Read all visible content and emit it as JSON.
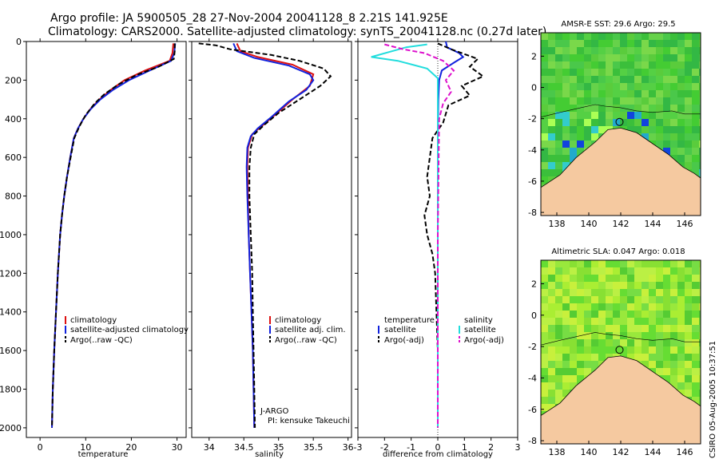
{
  "header": {
    "line1": "Argo profile: JA 5900505_28 27-Nov-2004 20041128_8 2.21S 141.925E",
    "line2": "Climatology: CARS2000. Satellite-adjusted climatology: synTS_20041128.nc (0.27d later)"
  },
  "side_note": "CSIRO 05-Aug-2005 10:37:51",
  "colors": {
    "climatology": "#dd1111",
    "satellite": "#1122dd",
    "argo": "#000000",
    "satellite_sal": "#22dddd",
    "argo_adj_sal": "#dd11cc",
    "land": "#f5c9a0",
    "ocean": "#44cc44"
  },
  "chart_data": [
    {
      "type": "line",
      "xlabel": "temperature",
      "xlim": [
        -3,
        32
      ],
      "ylim": [
        0,
        2050
      ],
      "y_inverted": true,
      "xticks": [
        0,
        10,
        20,
        30
      ],
      "yticks": [
        0,
        200,
        400,
        600,
        800,
        1000,
        1200,
        1400,
        1600,
        1800,
        2000
      ],
      "legend": [
        "climatology",
        "satellite-adjusted climatology",
        "Argo(..raw -QC)"
      ],
      "series": [
        {
          "name": "climatology",
          "color": "#dd1111",
          "dash": "",
          "points": [
            [
              29.2,
              10
            ],
            [
              29.0,
              60
            ],
            [
              28.4,
              100
            ],
            [
              23,
              150
            ],
            [
              18.5,
              200
            ],
            [
              15.5,
              250
            ],
            [
              13,
              300
            ],
            [
              11,
              350
            ],
            [
              9.5,
              400
            ],
            [
              8.3,
              450
            ],
            [
              7.4,
              500
            ],
            [
              6.6,
              600
            ],
            [
              5.9,
              700
            ],
            [
              5.3,
              800
            ],
            [
              4.8,
              900
            ],
            [
              4.4,
              1000
            ],
            [
              3.9,
              1200
            ],
            [
              3.5,
              1400
            ],
            [
              3.1,
              1600
            ],
            [
              2.8,
              1800
            ],
            [
              2.6,
              2000
            ]
          ]
        },
        {
          "name": "satellite-adjusted climatology",
          "color": "#1122dd",
          "dash": "",
          "points": [
            [
              29.6,
              10
            ],
            [
              29.4,
              60
            ],
            [
              28.7,
              100
            ],
            [
              24,
              150
            ],
            [
              19.5,
              200
            ],
            [
              16,
              250
            ],
            [
              13.2,
              300
            ],
            [
              11.1,
              350
            ],
            [
              9.5,
              400
            ],
            [
              8.3,
              450
            ],
            [
              7.4,
              500
            ],
            [
              6.6,
              600
            ],
            [
              5.9,
              700
            ],
            [
              5.3,
              800
            ],
            [
              4.8,
              900
            ],
            [
              4.4,
              1000
            ],
            [
              3.9,
              1200
            ],
            [
              3.5,
              1400
            ],
            [
              3.1,
              1600
            ],
            [
              2.8,
              1800
            ],
            [
              2.6,
              2000
            ]
          ]
        },
        {
          "name": "Argo(..raw -QC)",
          "color": "#000000",
          "dash": "6,3",
          "points": [
            [
              29.5,
              10
            ],
            [
              29.5,
              50
            ],
            [
              29.3,
              90
            ],
            [
              26,
              130
            ],
            [
              21,
              175
            ],
            [
              17,
              225
            ],
            [
              14,
              275
            ],
            [
              12,
              320
            ],
            [
              10,
              380
            ],
            [
              8.6,
              440
            ],
            [
              7.5,
              500
            ],
            [
              6.7,
              600
            ],
            [
              5.9,
              700
            ],
            [
              5.3,
              800
            ],
            [
              4.8,
              900
            ],
            [
              4.4,
              1000
            ],
            [
              3.9,
              1200
            ],
            [
              3.5,
              1400
            ],
            [
              3.1,
              1600
            ],
            [
              2.8,
              1800
            ],
            [
              2.6,
              2000
            ]
          ]
        }
      ]
    },
    {
      "type": "line",
      "xlabel": "salinity",
      "xlim": [
        33.75,
        36.05
      ],
      "ylim": [
        0,
        2050
      ],
      "y_inverted": true,
      "xticks": [
        34,
        34.5,
        35,
        35.5,
        36
      ],
      "legend": [
        "climatology",
        "satellite adj. clim.",
        "Argo(..raw -QC)"
      ],
      "annotation": [
        "J-ARGO",
        "PI: kensuke Takeuchi"
      ],
      "series": [
        {
          "name": "climatology",
          "color": "#dd1111",
          "dash": "",
          "points": [
            [
              34.4,
              10
            ],
            [
              34.45,
              50
            ],
            [
              34.7,
              80
            ],
            [
              35.2,
              120
            ],
            [
              35.5,
              170
            ],
            [
              35.45,
              230
            ],
            [
              35.2,
              300
            ],
            [
              34.95,
              380
            ],
            [
              34.75,
              440
            ],
            [
              34.62,
              480
            ],
            [
              34.56,
              550
            ],
            [
              34.55,
              650
            ],
            [
              34.56,
              800
            ],
            [
              34.57,
              1000
            ],
            [
              34.59,
              1200
            ],
            [
              34.61,
              1400
            ],
            [
              34.63,
              1600
            ],
            [
              34.64,
              1800
            ],
            [
              34.65,
              2000
            ]
          ]
        },
        {
          "name": "satellite adj. clim.",
          "color": "#1122dd",
          "dash": "",
          "points": [
            [
              34.35,
              10
            ],
            [
              34.4,
              50
            ],
            [
              34.65,
              85
            ],
            [
              35.15,
              125
            ],
            [
              35.45,
              170
            ],
            [
              35.5,
              200
            ],
            [
              35.4,
              250
            ],
            [
              35.15,
              310
            ],
            [
              34.9,
              390
            ],
            [
              34.7,
              450
            ],
            [
              34.6,
              490
            ],
            [
              34.55,
              550
            ],
            [
              34.54,
              650
            ],
            [
              34.55,
              800
            ],
            [
              34.57,
              1000
            ],
            [
              34.59,
              1200
            ],
            [
              34.61,
              1400
            ],
            [
              34.63,
              1600
            ],
            [
              34.64,
              1800
            ],
            [
              34.65,
              2000
            ]
          ]
        },
        {
          "name": "Argo(..raw -QC)",
          "color": "#000000",
          "dash": "6,3",
          "points": [
            [
              33.85,
              10
            ],
            [
              34.1,
              20
            ],
            [
              34.3,
              40
            ],
            [
              34.9,
              70
            ],
            [
              35.3,
              100
            ],
            [
              35.65,
              140
            ],
            [
              35.75,
              180
            ],
            [
              35.6,
              230
            ],
            [
              35.3,
              300
            ],
            [
              35.0,
              370
            ],
            [
              34.8,
              430
            ],
            [
              34.65,
              480
            ],
            [
              34.6,
              550
            ],
            [
              34.58,
              650
            ],
            [
              34.58,
              800
            ],
            [
              34.6,
              1000
            ],
            [
              34.62,
              1200
            ],
            [
              34.63,
              1400
            ],
            [
              34.64,
              1600
            ],
            [
              34.65,
              1800
            ],
            [
              34.66,
              2000
            ]
          ]
        }
      ]
    },
    {
      "type": "line",
      "xlabel": "difference from climatology",
      "xlim": [
        -3,
        3
      ],
      "ylim": [
        0,
        2050
      ],
      "y_inverted": true,
      "xticks": [
        -3,
        -2,
        -1,
        0,
        1,
        2,
        3
      ],
      "legend_left_title": "temperature",
      "legend_right_title": "salinity",
      "legend_left": [
        "satellite",
        "Argo(-adj)"
      ],
      "legend_right": [
        "satellite",
        "Argo(-adj)"
      ],
      "series": [
        {
          "name": "temperature satellite",
          "color": "#1122dd",
          "dash": "",
          "points": [
            [
              0.3,
              0
            ],
            [
              0.35,
              30
            ],
            [
              0.8,
              60
            ],
            [
              0.95,
              80
            ],
            [
              0.6,
              110
            ],
            [
              0.15,
              150
            ],
            [
              0.05,
              200
            ],
            [
              0.02,
              300
            ],
            [
              0,
              500
            ],
            [
              0,
              1000
            ],
            [
              0,
              2000
            ]
          ]
        },
        {
          "name": "temperature Argo(-adj)",
          "color": "#000000",
          "dash": "6,3",
          "points": [
            [
              0,
              10
            ],
            [
              0.5,
              40
            ],
            [
              1.5,
              90
            ],
            [
              1.2,
              130
            ],
            [
              1.7,
              180
            ],
            [
              0.9,
              230
            ],
            [
              1.2,
              280
            ],
            [
              0.4,
              330
            ],
            [
              0.2,
              420
            ],
            [
              -0.2,
              500
            ],
            [
              -0.3,
              600
            ],
            [
              -0.4,
              700
            ],
            [
              -0.3,
              800
            ],
            [
              -0.5,
              900
            ],
            [
              -0.4,
              1000
            ],
            [
              -0.2,
              1100
            ],
            [
              -0.1,
              1200
            ],
            [
              -0.05,
              1400
            ],
            [
              0,
              1600
            ],
            [
              0,
              2000
            ]
          ]
        },
        {
          "name": "salinity satellite",
          "color": "#22dddd",
          "dash": "",
          "points": [
            [
              -0.4,
              15
            ],
            [
              -1.2,
              30
            ],
            [
              -2.5,
              80
            ],
            [
              -1.5,
              100
            ],
            [
              -0.4,
              140
            ],
            [
              0,
              190
            ],
            [
              0,
              300
            ],
            [
              0,
              2000
            ]
          ]
        },
        {
          "name": "salinity Argo(-adj)",
          "color": "#dd11cc",
          "dash": "6,3",
          "points": [
            [
              -2.0,
              15
            ],
            [
              -1.3,
              40
            ],
            [
              -0.5,
              60
            ],
            [
              0.2,
              100
            ],
            [
              0.6,
              150
            ],
            [
              0.3,
              200
            ],
            [
              0.5,
              260
            ],
            [
              0.2,
              320
            ],
            [
              0.05,
              400
            ],
            [
              0,
              1000
            ],
            [
              0,
              2000
            ]
          ]
        }
      ]
    },
    {
      "type": "heatmap",
      "title": "AMSR-E SST: 29.6 Argo: 29.5",
      "xticks": [
        138,
        140,
        142,
        144,
        146
      ],
      "yticks": [
        2,
        0,
        -2,
        -4,
        -6,
        -8
      ],
      "xlim": [
        137,
        147
      ],
      "ylim": [
        -8.2,
        3.5
      ],
      "marker": [
        141.925,
        -2.21
      ]
    },
    {
      "type": "heatmap",
      "title": "Altimetric SLA: 0.047 Argo: 0.018",
      "xticks": [
        138,
        140,
        142,
        144,
        146
      ],
      "yticks": [
        2,
        0,
        -2,
        -4,
        -6,
        -8
      ],
      "xlim": [
        137,
        147
      ],
      "ylim": [
        -8.2,
        3.5
      ],
      "marker": [
        141.925,
        -2.21
      ]
    }
  ]
}
